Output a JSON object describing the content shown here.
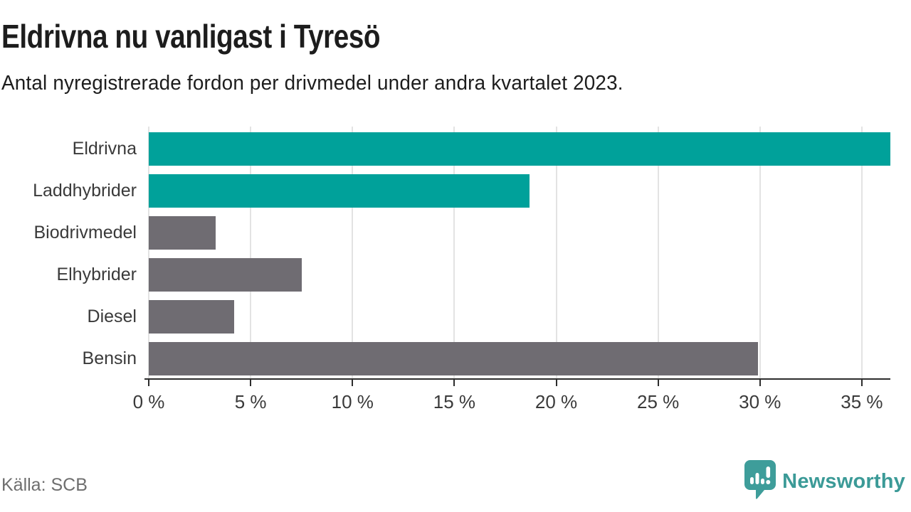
{
  "header": {
    "title": "Eldrivna nu vanligast i Tyresö",
    "subtitle": "Antal nyregistrerade fordon per drivmedel under andra kvartalet 2023."
  },
  "chart_data": {
    "type": "bar",
    "orientation": "horizontal",
    "title": "Eldrivna nu vanligast i Tyresö",
    "subtitle": "Antal nyregistrerade fordon per drivmedel under andra kvartalet 2023.",
    "categories": [
      "Eldrivna",
      "Laddhybrider",
      "Biodrivmedel",
      "Elhybrider",
      "Diesel",
      "Bensin"
    ],
    "values": [
      36.4,
      18.7,
      3.3,
      7.5,
      4.2,
      29.9
    ],
    "unit": "%",
    "xlim": [
      0,
      36.4
    ],
    "xticks": [
      0,
      5,
      10,
      15,
      20,
      25,
      30,
      35
    ],
    "xtick_suffix": " %",
    "grid": true,
    "legend": "none",
    "bar_colors": [
      "#00A19A",
      "#00A19A",
      "#6F6C72",
      "#6F6C72",
      "#6F6C72",
      "#6F6C72"
    ],
    "highlight_color": "#00A19A",
    "default_color": "#6F6C72"
  },
  "footer": {
    "source": "Källa: SCB",
    "brand": "Newsworthy"
  },
  "icons": {
    "brand_logo": "newsworthy-speech-bubble-chart-icon"
  },
  "colors": {
    "background": "#ffffff",
    "title_text": "#1d1d1d",
    "axis_text": "#3a3a3a",
    "axis_line": "#2d2d2d",
    "gridline": "#e3e3e3",
    "source_text": "#6e6e6e",
    "brand_teal": "#3b9a97"
  }
}
